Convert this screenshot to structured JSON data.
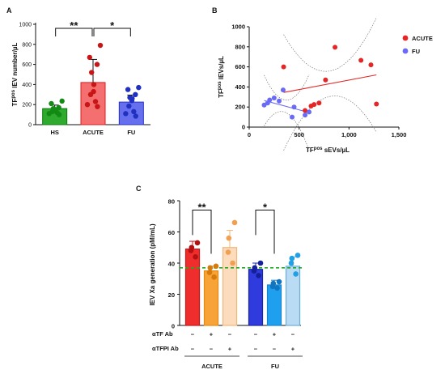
{
  "chart_data": [
    {
      "type": "bar",
      "panel_label": "A",
      "ylabel": "TFᵖᵒˢ lEV number/µL",
      "ylabel_main": "TF",
      "ylabel_sup": "pos",
      "ylabel_rest": " lEV number/µL",
      "ylim": [
        0,
        1000
      ],
      "yticks": [
        0,
        200,
        400,
        600,
        800,
        1000
      ],
      "categories": [
        "HS",
        "ACUTE",
        "FU"
      ],
      "values": [
        160,
        420,
        225
      ],
      "errors": [
        35,
        230,
        70
      ],
      "points": [
        [
          100,
          110,
          120,
          130,
          140,
          150,
          160,
          170,
          210,
          235
        ],
        [
          180,
          200,
          230,
          300,
          330,
          400,
          520,
          600,
          670,
          790
        ],
        [
          85,
          110,
          130,
          185,
          240,
          260,
          270,
          300,
          350,
          370
        ]
      ],
      "colors": {
        "fill": [
          "#2eaa2e",
          "#f46f6f",
          "#6670ee"
        ],
        "edge": [
          "#0c780c",
          "#e01b1b",
          "#2630c8"
        ],
        "point": [
          "#138a13",
          "#c81515",
          "#2030c0"
        ]
      },
      "significance": [
        {
          "between": [
            0,
            1
          ],
          "label": "**"
        },
        {
          "between": [
            1,
            2
          ],
          "label": "*"
        }
      ]
    },
    {
      "type": "scatter",
      "panel_label": "B",
      "xlabel_main": "TF",
      "xlabel_sup": "pos",
      "xlabel_rest": " sEVs/µL",
      "ylabel_main": "TF",
      "ylabel_sup": "pos",
      "ylabel_rest": " lEVs/µL",
      "xlim": [
        0,
        1500
      ],
      "ylim": [
        0,
        1000
      ],
      "xticks": [
        0,
        500,
        1000,
        1500
      ],
      "xtick_labels": [
        "0",
        "500",
        "1,000",
        "1,500"
      ],
      "yticks": [
        0,
        200,
        400,
        600,
        800,
        1000
      ],
      "legend_position": "right",
      "series": [
        {
          "name": "ACUTE",
          "color": "#e42626",
          "x": [
            345,
            560,
            620,
            650,
            700,
            765,
            860,
            1120,
            1220,
            1275
          ],
          "y": [
            600,
            165,
            210,
            225,
            240,
            470,
            795,
            665,
            620,
            230
          ],
          "fit": [
            [
              345,
              345
            ],
            [
              1275,
              520
            ]
          ]
        },
        {
          "name": "FU",
          "color": "#6a6af4",
          "x": [
            150,
            185,
            205,
            250,
            300,
            340,
            430,
            450,
            560,
            600
          ],
          "y": [
            220,
            240,
            270,
            290,
            260,
            370,
            100,
            200,
            120,
            150
          ],
          "fit": [
            [
              150,
              265
            ],
            [
              600,
              145
            ]
          ]
        }
      ]
    },
    {
      "type": "bar",
      "panel_label": "C",
      "ylabel": "lEV Xa generation (pM/mL)",
      "ylim": [
        0,
        80
      ],
      "yticks": [
        0,
        20,
        40,
        60,
        80
      ],
      "reference_line": 37,
      "reference_color": "#22aa22",
      "values": [
        49,
        35,
        50,
        36,
        26,
        38
      ],
      "errors": [
        5,
        3,
        11,
        4,
        3,
        6
      ],
      "points": [
        [
          44,
          48,
          50,
          53
        ],
        [
          31,
          34,
          37,
          38
        ],
        [
          40,
          47,
          56,
          66
        ],
        [
          32,
          35,
          37,
          40
        ],
        [
          24,
          25,
          27,
          28
        ],
        [
          33,
          40,
          43,
          45
        ]
      ],
      "colors": {
        "fill": [
          "#ef2d2d",
          "#f7a338",
          "#fcdcbc",
          "#2f3bdc",
          "#1ea0ee",
          "#b9dbf3"
        ],
        "edge": [
          "#cf1313",
          "#e58a12",
          "#f2b679",
          "#1b24a8",
          "#1584d0",
          "#6aaedd"
        ],
        "point": [
          "#b51010",
          "#d67a0c",
          "#f0a050",
          "#141f9a",
          "#1175bf",
          "#22a0e6"
        ]
      },
      "treatments": [
        {
          "label": "αTF Ab",
          "marks": [
            "−",
            "+",
            "−",
            "−",
            "+",
            "−"
          ]
        },
        {
          "label": "αTFPI Ab",
          "marks": [
            "−",
            "−",
            "+",
            "−",
            "−",
            "+"
          ]
        }
      ],
      "groups": [
        {
          "label": "ACUTE",
          "bars": [
            0,
            1,
            2
          ]
        },
        {
          "label": "FU",
          "bars": [
            3,
            4,
            5
          ]
        }
      ],
      "significance": [
        {
          "between": [
            0,
            1
          ],
          "label": "**"
        },
        {
          "between": [
            3,
            4
          ],
          "label": "*"
        }
      ]
    }
  ]
}
